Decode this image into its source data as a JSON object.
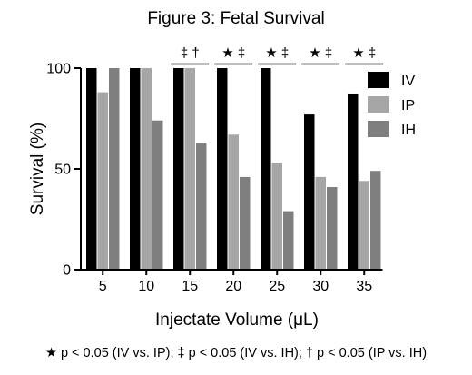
{
  "title": "Figure 3: Fetal Survival",
  "footnote": "★ p < 0.05 (IV vs. IP); ‡ p < 0.05 (IV vs. IH); † p < 0.05 (IP vs. IH)",
  "colors": {
    "IV": "#000000",
    "IP": "#a6a6a6",
    "IH": "#7f7f7f"
  },
  "chart_data": {
    "type": "bar",
    "title": "Figure 3: Fetal Survival",
    "xlabel": "Injectate Volume (μL)",
    "ylabel": "Survival (%)",
    "ylim": [
      0,
      100
    ],
    "yticks": [
      0,
      50,
      100
    ],
    "categories": [
      "5",
      "10",
      "15",
      "20",
      "25",
      "30",
      "35"
    ],
    "series": [
      {
        "name": "IV",
        "values": [
          100,
          100,
          100,
          100,
          100,
          77,
          87
        ]
      },
      {
        "name": "IP",
        "values": [
          88,
          100,
          100,
          67,
          53,
          46,
          44
        ]
      },
      {
        "name": "IH",
        "values": [
          100,
          74,
          63,
          46,
          29,
          41,
          49
        ]
      }
    ],
    "significance": [
      "",
      "",
      "‡ †",
      "★ ‡",
      "★ ‡",
      "★ ‡",
      "★ ‡"
    ],
    "legend_position": "right",
    "grid": false
  }
}
